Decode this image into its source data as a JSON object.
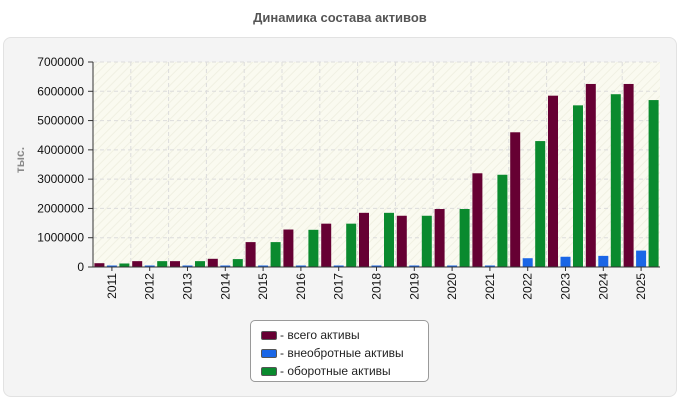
{
  "title": "Динамика состава активов",
  "chart_data": {
    "type": "bar",
    "title": "Динамика состава активов",
    "ylabel": "тыс.",
    "xlabel": "",
    "ylim": [
      0,
      7000000
    ],
    "yticks": [
      "0",
      "1000000",
      "2000000",
      "3000000",
      "4000000",
      "5000000",
      "6000000",
      "7000000"
    ],
    "grid": true,
    "legend_position": "bottom",
    "categories": [
      "2011",
      "2012",
      "2013",
      "2014",
      "2015",
      "2016",
      "2017",
      "2018",
      "2019",
      "2020",
      "2021",
      "2022",
      "2023",
      "2024",
      "2025"
    ],
    "series": [
      {
        "name": "- всего активы",
        "color": "#660033",
        "values": [
          130000,
          200000,
          200000,
          280000,
          850000,
          1280000,
          1480000,
          1850000,
          1750000,
          1980000,
          3200000,
          4600000,
          5850000,
          6250000,
          6250000
        ]
      },
      {
        "name": "- внеобротные активы",
        "color": "#1a66e6",
        "values": [
          15000,
          15000,
          15000,
          15000,
          25000,
          35000,
          35000,
          40000,
          35000,
          35000,
          40000,
          300000,
          350000,
          380000,
          560000
        ]
      },
      {
        "name": "- оборотные активы",
        "color": "#0a8a2e",
        "values": [
          120000,
          200000,
          200000,
          270000,
          850000,
          1270000,
          1480000,
          1850000,
          1750000,
          1980000,
          3150000,
          4300000,
          5520000,
          5900000,
          5700000
        ]
      }
    ]
  }
}
